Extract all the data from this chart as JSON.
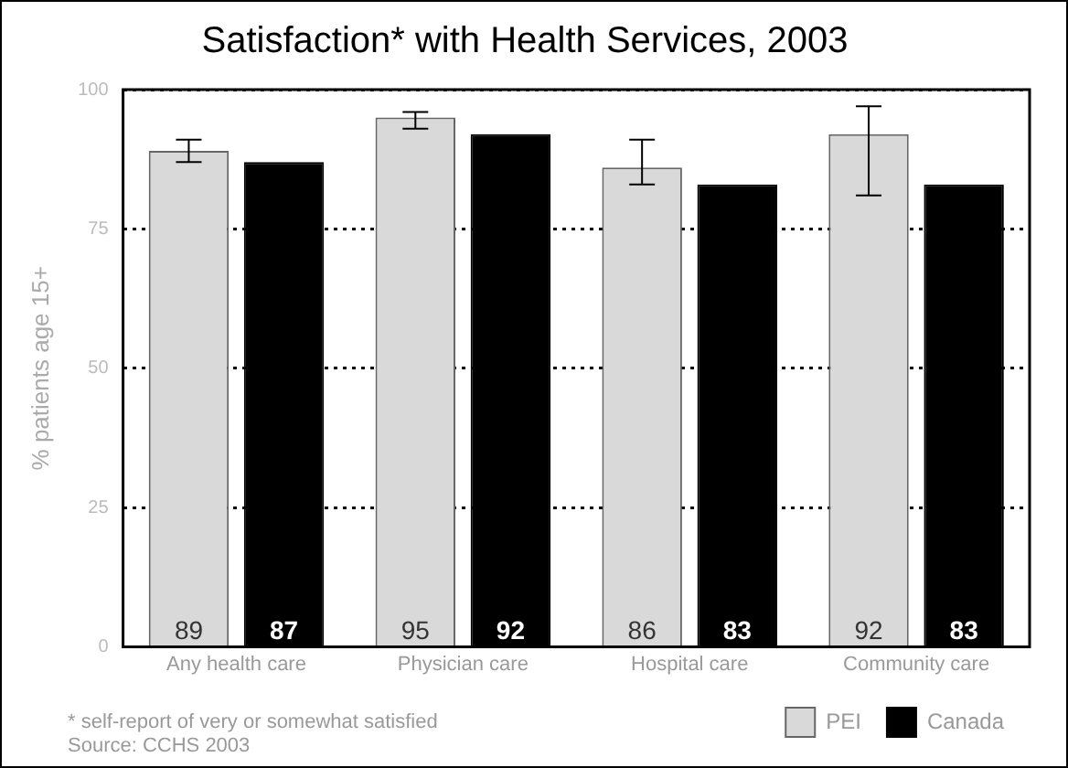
{
  "chart_data": {
    "type": "bar",
    "title": "Satisfaction* with Health Services, 2003",
    "ylabel": "% patients age 15+",
    "categories": [
      "Any health care",
      "Physician care",
      "Hospital care",
      "Community care"
    ],
    "series": [
      {
        "name": "PEI",
        "color": "#d9d9d9",
        "values": [
          89,
          95,
          86,
          92
        ],
        "errors": [
          [
            87,
            91
          ],
          [
            93,
            96
          ],
          [
            83,
            91
          ],
          [
            81,
            97
          ]
        ]
      },
      {
        "name": "Canada",
        "color": "#000000",
        "values": [
          87,
          92,
          83,
          83
        ]
      }
    ],
    "ylim": [
      0,
      100
    ],
    "yticks": [
      0,
      25,
      50,
      75,
      100
    ],
    "grid": "y",
    "line_style": "dotted",
    "legend": "bottom right",
    "data_labels": true,
    "annotations": [
      "* self-report of very or somewhat satisfied",
      "Source: CCHS 2003"
    ]
  }
}
